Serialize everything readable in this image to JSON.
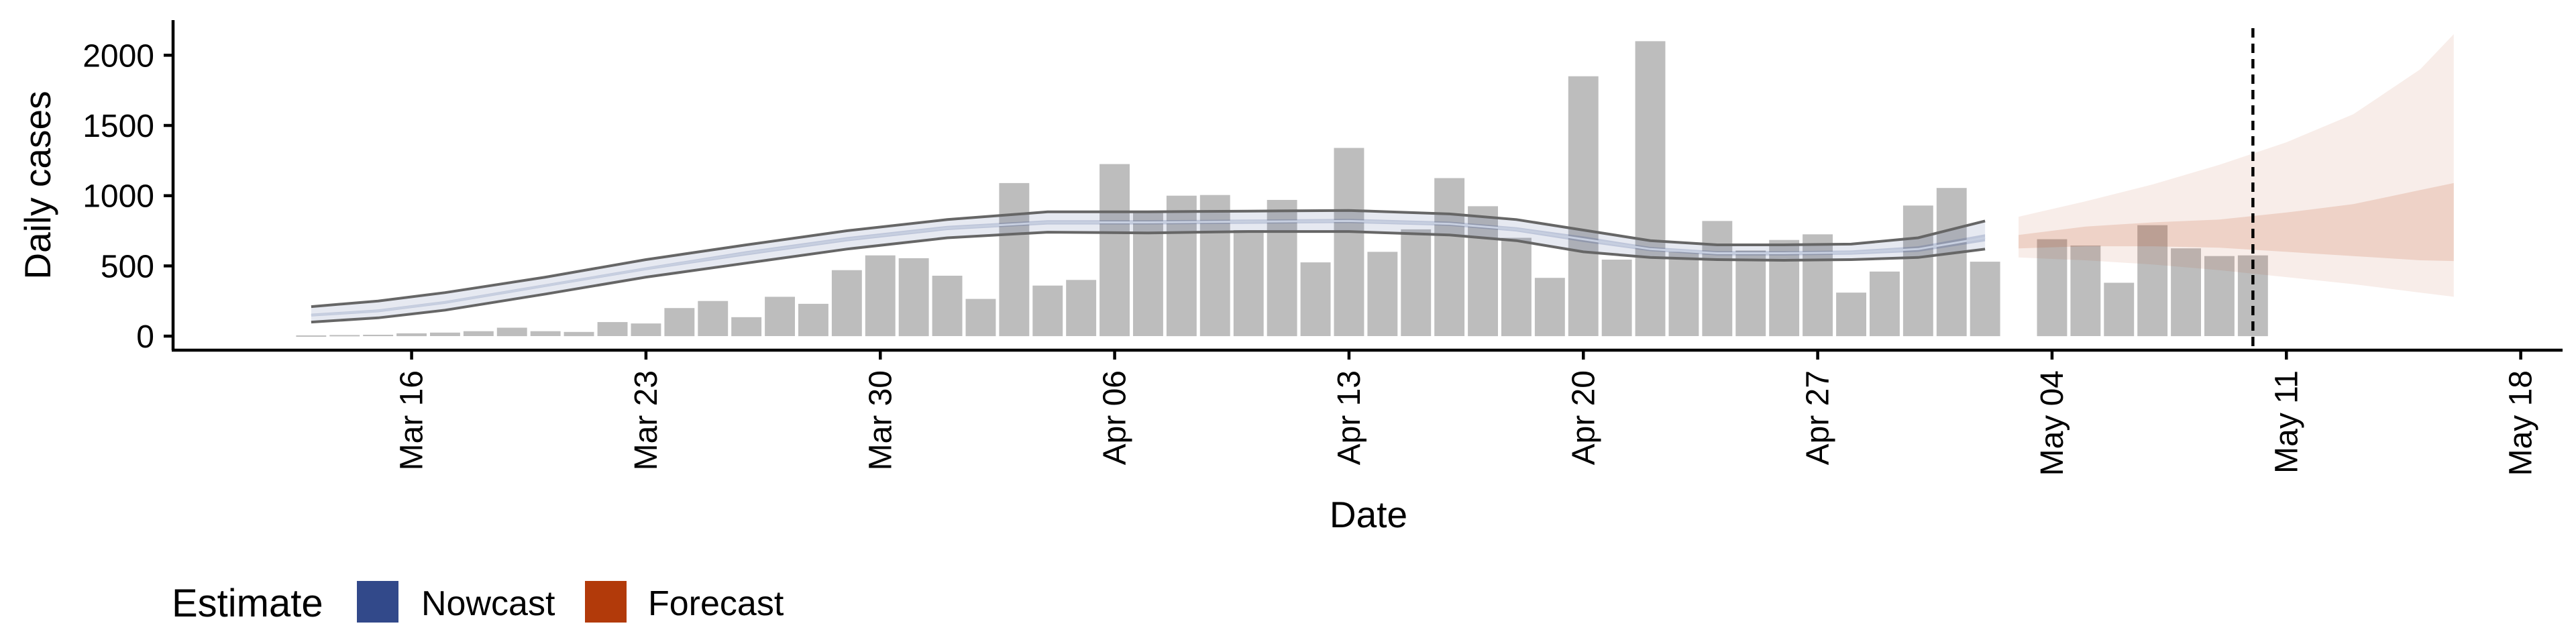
{
  "chart_data": {
    "type": "bar",
    "xlabel": "Date",
    "ylabel": "Daily cases",
    "ylim": [
      -100,
      2250
    ],
    "y_ticks": [
      0,
      500,
      1000,
      1500,
      2000
    ],
    "x_ticks": [
      {
        "date": "2020-03-16",
        "label": "Mar 16"
      },
      {
        "date": "2020-03-23",
        "label": "Mar 23"
      },
      {
        "date": "2020-03-30",
        "label": "Mar 30"
      },
      {
        "date": "2020-04-06",
        "label": "Apr 06"
      },
      {
        "date": "2020-04-13",
        "label": "Apr 13"
      },
      {
        "date": "2020-04-20",
        "label": "Apr 20"
      },
      {
        "date": "2020-04-27",
        "label": "Apr 27"
      },
      {
        "date": "2020-05-04",
        "label": "May 04"
      },
      {
        "date": "2020-05-11",
        "label": "May 11"
      },
      {
        "date": "2020-05-18",
        "label": "May 18"
      }
    ],
    "xlim": [
      "2020-03-08T21:00:00",
      "2020-05-19T06:00:00"
    ],
    "vline_date": "2020-05-10",
    "bars": {
      "name": "Daily cases",
      "color": "#bdbdbd",
      "dates": [
        "2020-03-13",
        "2020-03-14",
        "2020-03-15",
        "2020-03-16",
        "2020-03-17",
        "2020-03-18",
        "2020-03-19",
        "2020-03-20",
        "2020-03-21",
        "2020-03-22",
        "2020-03-23",
        "2020-03-24",
        "2020-03-25",
        "2020-03-26",
        "2020-03-27",
        "2020-03-28",
        "2020-03-29",
        "2020-03-30",
        "2020-03-31",
        "2020-04-01",
        "2020-04-02",
        "2020-04-03",
        "2020-04-04",
        "2020-04-05",
        "2020-04-06",
        "2020-04-07",
        "2020-04-08",
        "2020-04-09",
        "2020-04-10",
        "2020-04-11",
        "2020-04-12",
        "2020-04-13",
        "2020-04-14",
        "2020-04-15",
        "2020-04-16",
        "2020-04-17",
        "2020-04-18",
        "2020-04-19",
        "2020-04-20",
        "2020-04-21",
        "2020-04-22",
        "2020-04-23",
        "2020-04-24",
        "2020-04-25",
        "2020-04-26",
        "2020-04-27",
        "2020-04-28",
        "2020-04-29",
        "2020-04-30",
        "2020-05-01",
        "2020-05-02",
        "2020-05-04",
        "2020-05-05",
        "2020-05-06",
        "2020-05-07",
        "2020-05-08",
        "2020-05-09",
        "2020-05-10"
      ],
      "values": [
        5,
        8,
        10,
        20,
        25,
        35,
        60,
        35,
        30,
        100,
        90,
        200,
        250,
        135,
        280,
        230,
        470,
        575,
        555,
        430,
        265,
        1090,
        360,
        400,
        1225,
        880,
        1000,
        1005,
        755,
        970,
        525,
        1340,
        600,
        760,
        1125,
        925,
        700,
        415,
        1850,
        545,
        2100,
        600,
        820,
        610,
        685,
        725,
        310,
        460,
        930,
        1055,
        530,
        690,
        645,
        380,
        790,
        625,
        570,
        575
      ]
    },
    "nowcast": {
      "name": "Nowcast",
      "color": "#32498a",
      "dates": [
        "2020-03-13",
        "2020-03-15",
        "2020-03-17",
        "2020-03-20",
        "2020-03-23",
        "2020-03-26",
        "2020-03-29",
        "2020-04-01",
        "2020-04-04",
        "2020-04-07",
        "2020-04-10",
        "2020-04-13",
        "2020-04-16",
        "2020-04-18",
        "2020-04-20",
        "2020-04-22",
        "2020-04-24",
        "2020-04-26",
        "2020-04-28",
        "2020-04-30",
        "2020-05-02"
      ],
      "median": [
        150,
        180,
        240,
        360,
        480,
        590,
        690,
        770,
        810,
        810,
        815,
        820,
        800,
        760,
        690,
        620,
        590,
        590,
        595,
        620,
        700
      ],
      "ci50_lower": [
        140,
        170,
        230,
        350,
        470,
        575,
        675,
        755,
        795,
        795,
        800,
        805,
        785,
        745,
        670,
        605,
        575,
        575,
        580,
        600,
        675
      ],
      "ci50_upper": [
        160,
        190,
        250,
        370,
        490,
        605,
        705,
        785,
        825,
        825,
        830,
        835,
        815,
        775,
        710,
        635,
        605,
        605,
        610,
        640,
        725
      ],
      "ci90_lower": [
        100,
        130,
        185,
        300,
        420,
        520,
        620,
        700,
        740,
        735,
        745,
        745,
        720,
        680,
        600,
        560,
        545,
        540,
        545,
        560,
        620
      ],
      "ci90_upper": [
        210,
        250,
        310,
        420,
        545,
        650,
        750,
        830,
        885,
        885,
        890,
        895,
        870,
        830,
        755,
        680,
        650,
        650,
        655,
        700,
        820
      ]
    },
    "forecast": {
      "name": "Forecast",
      "color": "#b23a0a",
      "dates": [
        "2020-05-03",
        "2020-05-05",
        "2020-05-07",
        "2020-05-09",
        "2020-05-11",
        "2020-05-13",
        "2020-05-15",
        "2020-05-16"
      ],
      "ci50_lower": [
        625,
        640,
        640,
        630,
        600,
        570,
        540,
        535
      ],
      "ci50_upper": [
        720,
        780,
        810,
        830,
        880,
        940,
        1040,
        1090
      ],
      "ci90_lower": [
        560,
        540,
        510,
        470,
        420,
        370,
        310,
        280
      ],
      "ci90_upper": [
        850,
        960,
        1080,
        1220,
        1380,
        1580,
        1900,
        2150
      ]
    },
    "legend": {
      "title": "Estimate",
      "position": "bottom-left",
      "items": [
        {
          "label": "Nowcast",
          "color": "#32498a"
        },
        {
          "label": "Forecast",
          "color": "#b23a0a"
        }
      ]
    }
  }
}
